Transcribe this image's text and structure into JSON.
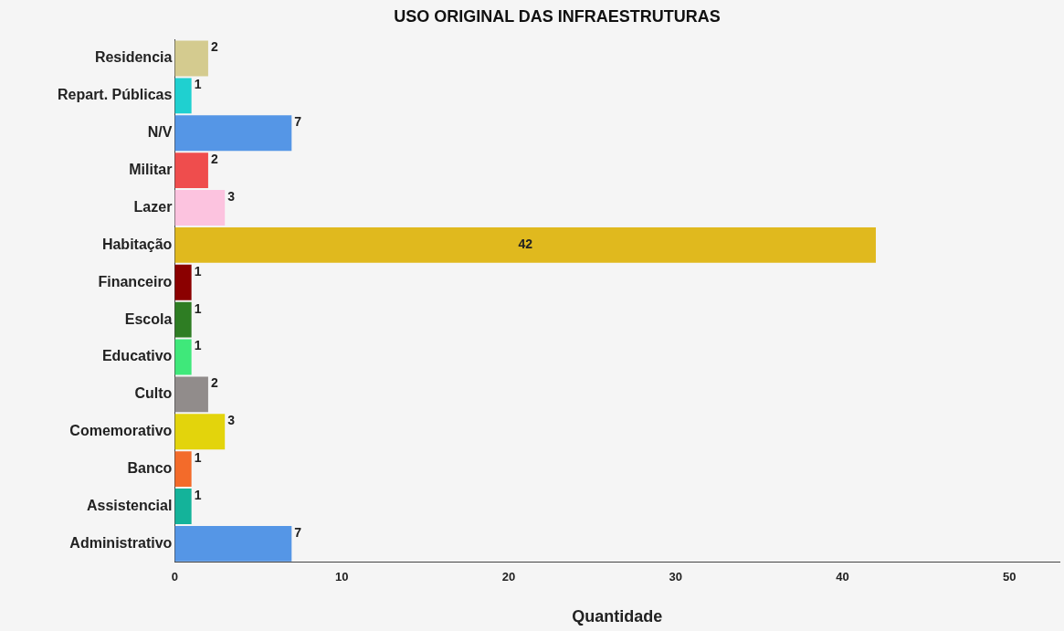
{
  "chart_data": {
    "type": "bar",
    "orientation": "horizontal",
    "title": "USO ORIGINAL DAS INFRAESTRUTURAS",
    "xlabel": "Quantidade",
    "categories": [
      "Residencia",
      "Repart. Públicas",
      "N/V",
      "Militar",
      "Lazer",
      "Habitação",
      "Financeiro",
      "Escola",
      "Educativo",
      "Culto",
      "Comemorativo",
      "Banco",
      "Assistencial",
      "Administrativo"
    ],
    "values": [
      2,
      1,
      7,
      2,
      3,
      42,
      1,
      1,
      1,
      2,
      3,
      1,
      1,
      7
    ],
    "colors": [
      "#d4cb8f",
      "#1fd0d0",
      "#5596e6",
      "#ef4d4d",
      "#fcc3df",
      "#e0b91e",
      "#8b0000",
      "#2e7d23",
      "#3fe87a",
      "#918c8b",
      "#e3d40c",
      "#f36b2a",
      "#14b39a",
      "#5596e6"
    ],
    "xlim": [
      0,
      53
    ],
    "xticks": [
      0,
      10,
      20,
      30,
      40,
      50
    ],
    "grid": false,
    "legend": false,
    "data_labels": true
  }
}
